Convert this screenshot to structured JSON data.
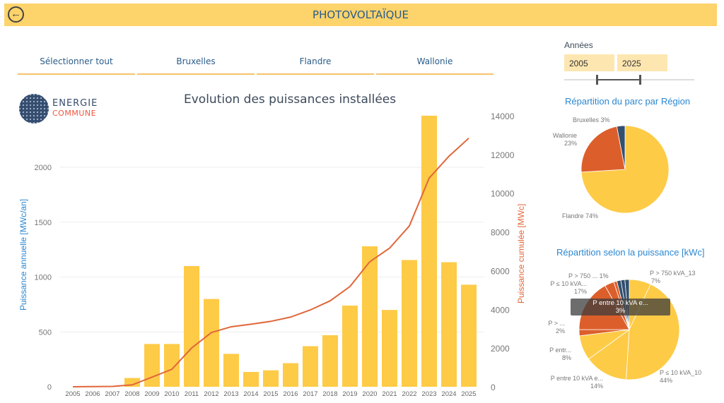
{
  "header": {
    "title": "PHOTOVOLTAÏQUE",
    "back_icon": "arrow-left-circle-icon"
  },
  "slicers": [
    "Sélectionner tout",
    "Bruxelles",
    "Flandre",
    "Wallonie"
  ],
  "logo": {
    "line1": "ENERGIE",
    "line2": "COMMUNE"
  },
  "years": {
    "label": "Années",
    "from": "2005",
    "to": "2025"
  },
  "colors": {
    "bar": "#fecb47",
    "line": "#e0673a",
    "orange": "#dc5f2b",
    "navy": "#33506e",
    "accent": "#fdd36b"
  },
  "chart_data": {
    "type": "bar+line",
    "title": "Evolution des puissances installées",
    "ylabel": "Puissance annuelle [MWc/an]",
    "y2label": "Puissance cumulée [MWc]",
    "ylim": [
      0,
      2470
    ],
    "y2lim": [
      0,
      14000
    ],
    "yticks": [
      "0",
      "500",
      "1000",
      "1500",
      "2000"
    ],
    "y2ticks": [
      "0",
      "2000",
      "4000",
      "6000",
      "8000",
      "10000",
      "12000",
      "14000"
    ],
    "categories": [
      "2005",
      "2006",
      "2007",
      "2008",
      "2009",
      "2010",
      "2011",
      "2012",
      "2013",
      "2014",
      "2015",
      "2016",
      "2017",
      "2018",
      "2019",
      "2020",
      "2021",
      "2022",
      "2023",
      "2024",
      "2025"
    ],
    "series": [
      {
        "name": "Puissance annuelle",
        "axis": "left",
        "type": "bar",
        "values": [
          0,
          2,
          8,
          80,
          390,
          390,
          1100,
          800,
          300,
          135,
          150,
          215,
          370,
          470,
          740,
          1280,
          700,
          1155,
          2470,
          1135,
          930
        ]
      },
      {
        "name": "Puissance cumulée",
        "axis": "right",
        "type": "line",
        "values": [
          0,
          10,
          20,
          100,
          500,
          900,
          2000,
          2800,
          3100,
          3230,
          3380,
          3600,
          3970,
          4440,
          5180,
          6460,
          7160,
          8310,
          10780,
          11910,
          12840
        ]
      }
    ]
  },
  "pie_region": {
    "title": "Répartition du parc par Région",
    "slices": [
      {
        "label": "Flandre 74%",
        "value": 74,
        "color": "#fecb47"
      },
      {
        "label": "Wallonie",
        "pct": "23%",
        "value": 23,
        "color": "#dc5f2b"
      },
      {
        "label": "Bruxelles 3%",
        "value": 3,
        "color": "#33506e"
      }
    ]
  },
  "pie_power": {
    "title": "Répartition  selon la puissance [kWc]",
    "slices": [
      {
        "label": "P > 750 kVA_13",
        "pct": "7%",
        "value": 7,
        "color": "#fecb47"
      },
      {
        "label": "P ≤ 10 kVA_10",
        "pct": "44%",
        "value": 44,
        "color": "#fecb47"
      },
      {
        "label": "P entre 10 kVA e...",
        "pct": "14%",
        "value": 14,
        "color": "#fecb47"
      },
      {
        "label": "P entr...",
        "pct": "8%",
        "value": 8,
        "color": "#fecb47"
      },
      {
        "label": "P > ...",
        "pct": "2%",
        "value": 2,
        "color": "#dc5f2b"
      },
      {
        "label": "P ≤ 10 kVA...",
        "pct": "17%",
        "value": 17,
        "color": "#dc5f2b"
      },
      {
        "label": "P entre 10 kVA e...",
        "pct": "3%",
        "value": 3,
        "color": "#dc5f2b"
      },
      {
        "label": "P > 750 ...",
        "pct": "1%",
        "value": 1,
        "color": "#dc5f2b"
      },
      {
        "label": "",
        "pct": "",
        "value": 1.3,
        "color": "#33506e"
      },
      {
        "label": "",
        "pct": "",
        "value": 1.3,
        "color": "#33506e"
      },
      {
        "label": "",
        "pct": "",
        "value": 1.4,
        "color": "#33506e"
      }
    ],
    "tooltip": {
      "label": "P entre 10 kVA e...",
      "pct": "3%"
    }
  }
}
